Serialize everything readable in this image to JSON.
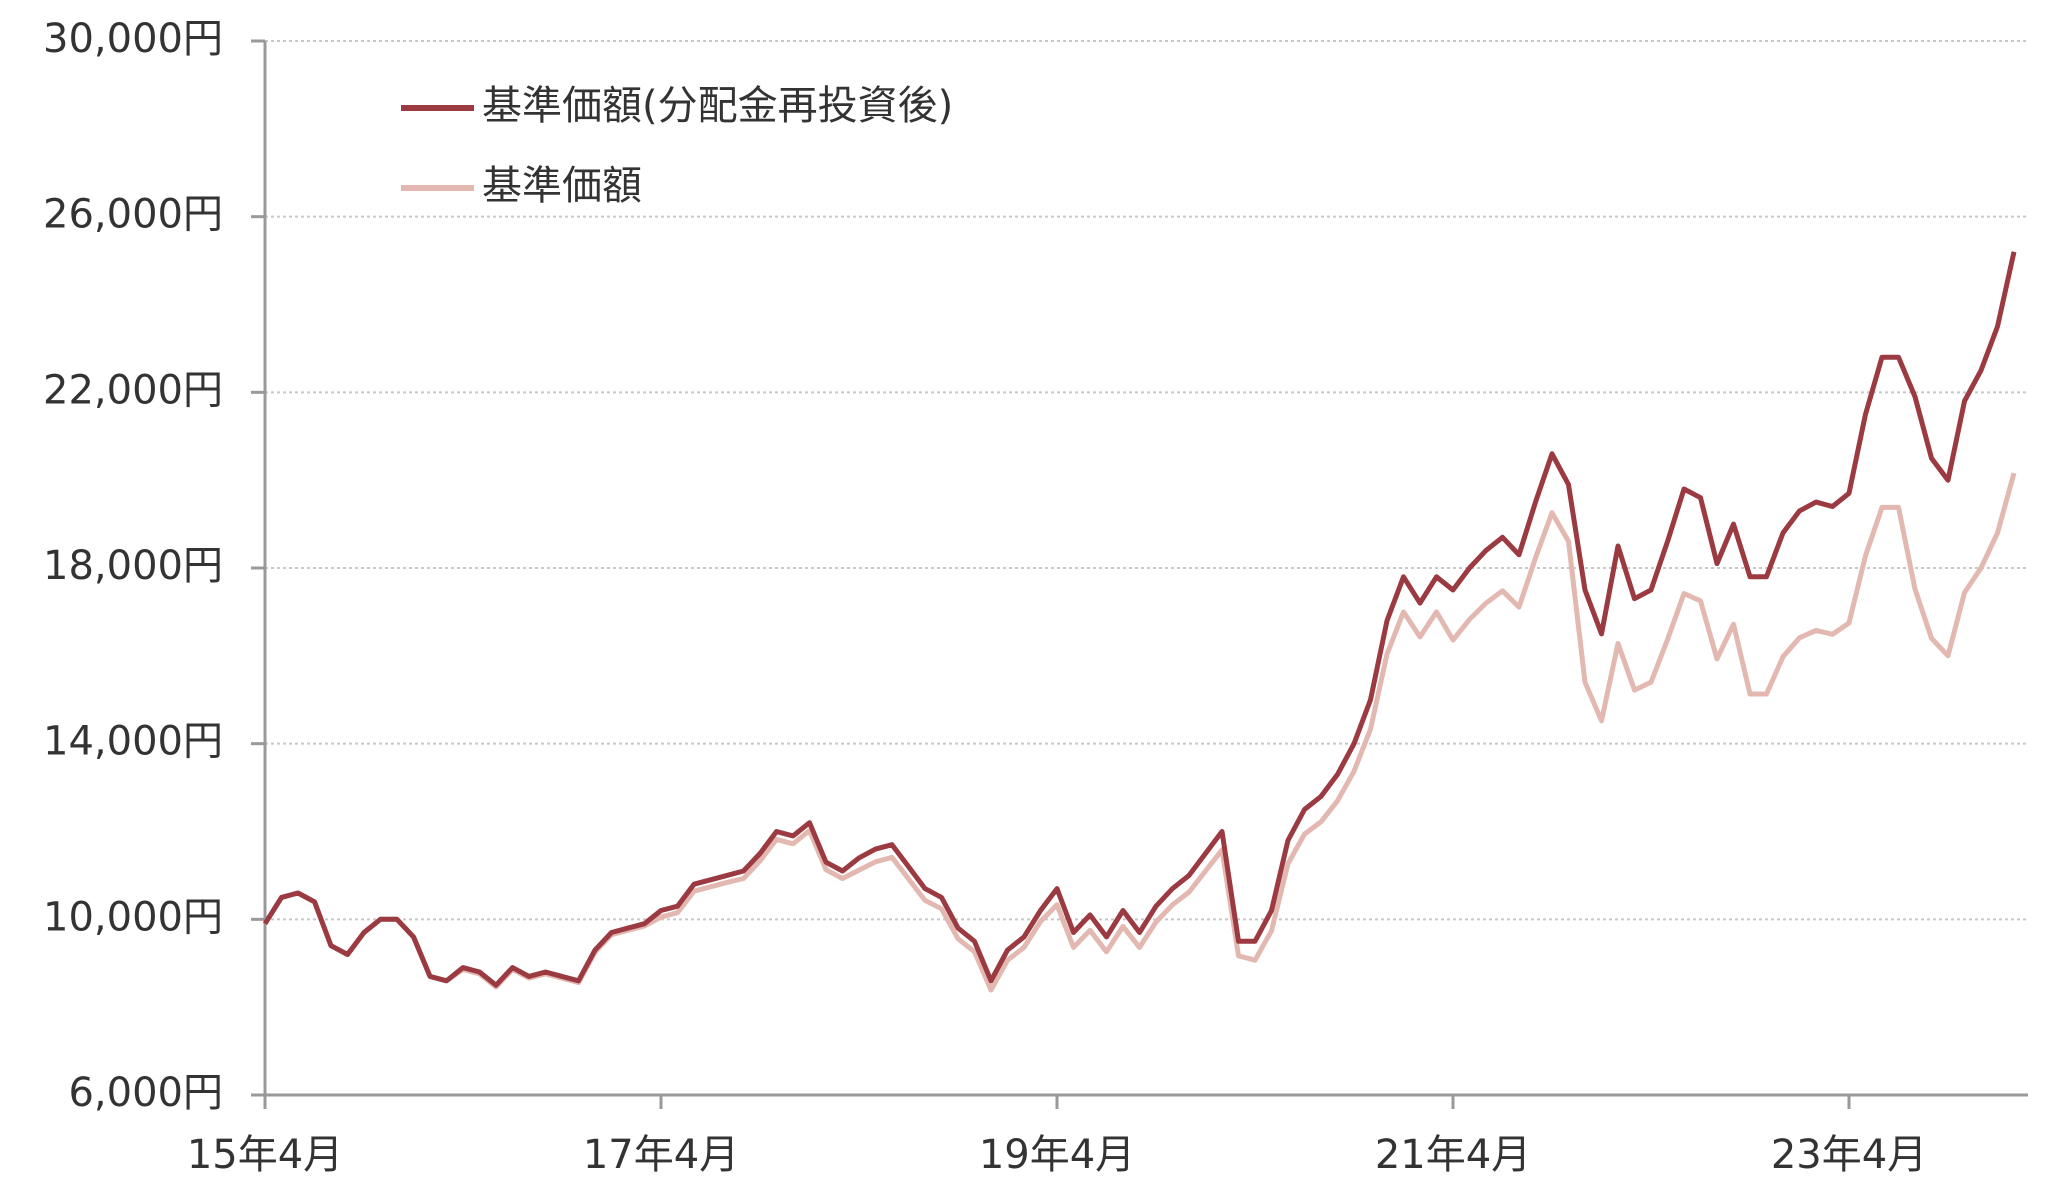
{
  "chart_data": {
    "type": "line",
    "categories": [
      "15年4月",
      null,
      null,
      null,
      null,
      null,
      null,
      null,
      null,
      null,
      null,
      null,
      null,
      null,
      null,
      null,
      null,
      null,
      null,
      null,
      null,
      null,
      null,
      null,
      "17年4月",
      null,
      null,
      null,
      null,
      null,
      null,
      null,
      null,
      null,
      null,
      null,
      null,
      null,
      null,
      null,
      null,
      null,
      null,
      null,
      null,
      null,
      null,
      null,
      "19年4月",
      null,
      null,
      null,
      null,
      null,
      null,
      null,
      null,
      null,
      null,
      null,
      null,
      null,
      null,
      null,
      null,
      null,
      null,
      null,
      null,
      null,
      null,
      null,
      "21年4月",
      null,
      null,
      null,
      null,
      null,
      null,
      null,
      null,
      null,
      null,
      null,
      null,
      null,
      null,
      null,
      null,
      null,
      null,
      null,
      null,
      null,
      null,
      null,
      "23年4月",
      null,
      null,
      null,
      null,
      null,
      null,
      null,
      null,
      null,
      null
    ],
    "series": [
      {
        "name": "基準価額(分配金再投資後)",
        "color": "#9b3a40",
        "values": [
          9900,
          10500,
          10600,
          10400,
          9400,
          9200,
          9700,
          10000,
          10000,
          9600,
          8700,
          8600,
          8900,
          8800,
          8500,
          8900,
          8700,
          8800,
          8700,
          8600,
          9300,
          9700,
          9800,
          9900,
          10200,
          10300,
          10800,
          10900,
          11000,
          11100,
          11500,
          12000,
          11900,
          12200,
          11300,
          11100,
          11400,
          11600,
          11700,
          11200,
          10700,
          10500,
          9800,
          9500,
          8600,
          9300,
          9600,
          10200,
          10700,
          9700,
          10100,
          9600,
          10200,
          9700,
          10300,
          10700,
          11000,
          11500,
          12000,
          9500,
          9500,
          10200,
          11800,
          12500,
          12800,
          13300,
          14000,
          15000,
          16800,
          17800,
          17200,
          17800,
          17500,
          18000,
          18400,
          18700,
          18300,
          19500,
          20600,
          19900,
          17500,
          16500,
          18500,
          17300,
          17500,
          18600,
          19800,
          19600,
          18100,
          19000,
          17800,
          17800,
          18800,
          19300,
          19500,
          19400,
          19700,
          21500,
          22800,
          22800,
          21900,
          20500,
          20000,
          21800,
          22500,
          23500,
          25200
        ]
      },
      {
        "name": "基準価額",
        "color": "#e2b8b0",
        "values": [
          9900,
          10500,
          10600,
          10400,
          9400,
          9200,
          9700,
          10000,
          10000,
          9600,
          8700,
          8600,
          8860,
          8760,
          8460,
          8860,
          8660,
          8760,
          8660,
          8560,
          9250,
          9650,
          9750,
          9850,
          10050,
          10150,
          10640,
          10740,
          10840,
          10930,
          11330,
          11820,
          11720,
          12020,
          11130,
          10930,
          11120,
          11310,
          11410,
          10920,
          10430,
          10240,
          9560,
          9260,
          8390,
          9070,
          9360,
          9950,
          10330,
          9360,
          9750,
          9260,
          9840,
          9360,
          9940,
          10330,
          10620,
          11100,
          11580,
          9170,
          9070,
          9740,
          11270,
          11940,
          12220,
          12700,
          13370,
          14330,
          16040,
          17000,
          16430,
          17000,
          16360,
          16830,
          17200,
          17480,
          17110,
          18230,
          19260,
          18610,
          15400,
          14520,
          16280,
          15220,
          15400,
          16370,
          17420,
          17250,
          15930,
          16720,
          15130,
          15130,
          15980,
          16410,
          16580,
          16490,
          16750,
          18280,
          19380,
          19380,
          17520,
          16400,
          16000,
          17440,
          18000,
          18800,
          20160
        ]
      }
    ],
    "ylim": [
      6000,
      30000
    ],
    "yticks": [
      {
        "value": 6000,
        "label": "6,000円"
      },
      {
        "value": 10000,
        "label": "10,000円"
      },
      {
        "value": 14000,
        "label": "14,000円"
      },
      {
        "value": 18000,
        "label": "18,000円"
      },
      {
        "value": 22000,
        "label": "22,000円"
      },
      {
        "value": 26000,
        "label": "26,000円"
      },
      {
        "value": 30000,
        "label": "30,000円"
      }
    ],
    "grid": true
  }
}
